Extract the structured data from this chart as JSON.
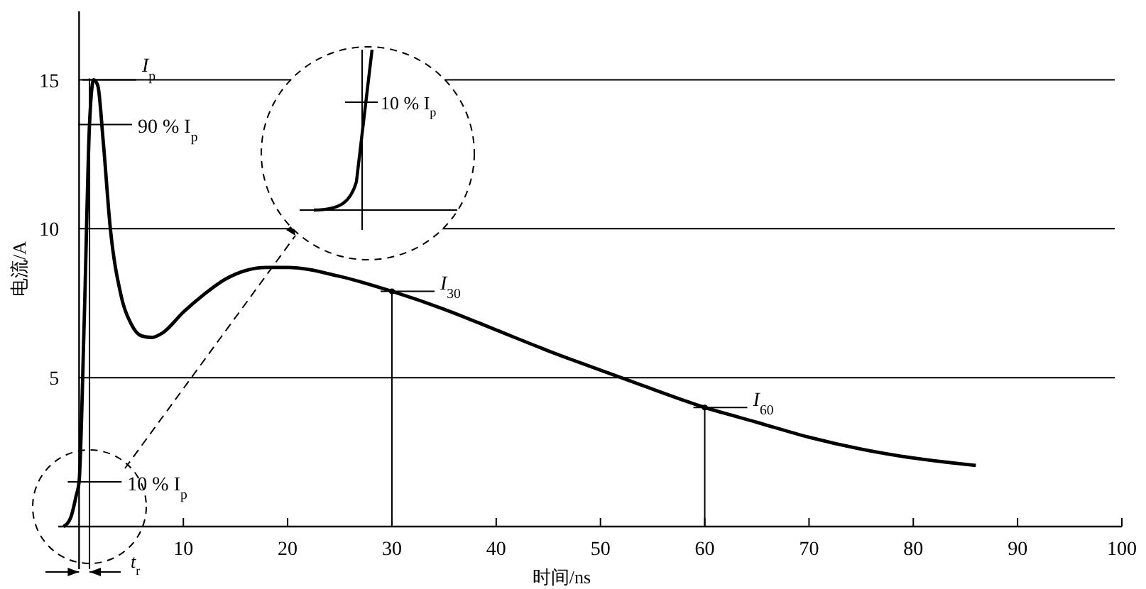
{
  "chart_data": {
    "type": "line",
    "xlabel": "时间/ns",
    "ylabel": "电流/A",
    "xlim": [
      -2,
      100
    ],
    "ylim": [
      0,
      17.3
    ],
    "xticks": [
      10,
      20,
      30,
      40,
      50,
      60,
      70,
      80,
      90,
      100
    ],
    "yticks": [
      5,
      10,
      15
    ],
    "grid": "y",
    "marker": "none",
    "line_style": "solid",
    "series": [
      {
        "color": "#000000",
        "x": [
          -1.5,
          -0.8,
          -0.3,
          0,
          0.5,
          1,
          1.4,
          1.8,
          2.3,
          3,
          4,
          5,
          6,
          7,
          8,
          10,
          12,
          14,
          16,
          18,
          20,
          25,
          30,
          35,
          40,
          45,
          52,
          60,
          65,
          70,
          75,
          80,
          86
        ],
        "values": [
          0,
          0.3,
          1,
          1.5,
          7,
          13.5,
          15,
          14.8,
          13,
          10,
          7.8,
          6.8,
          6.4,
          6.35,
          6.5,
          7.2,
          7.8,
          8.3,
          8.6,
          8.7,
          8.7,
          8.4,
          7.9,
          7.3,
          6.6,
          5.9,
          5.0,
          4.0,
          3.5,
          3.0,
          2.6,
          2.3,
          2.05
        ]
      },
      {
        "type": "lollipop",
        "color": "#000000",
        "marker": "circle",
        "x": [
          30,
          60
        ],
        "values": [
          7.9,
          4.0
        ]
      }
    ],
    "ref_lines": [
      {
        "axis": "x",
        "value": 1
      }
    ],
    "annotations": [
      {
        "text": "I$_{p}$",
        "x": 1.4,
        "y": 15
      },
      {
        "text": "90 % I$_{p}$",
        "x": 1,
        "y": 13.5
      },
      {
        "text": "10 % I$_{p}$",
        "x": 0,
        "y": 1.5
      },
      {
        "text": "I$_{30}$",
        "x": 30,
        "y": 7.9
      },
      {
        "text": "I$_{60}$",
        "x": 60,
        "y": 4.0
      },
      "t$_{r}$",
      "10 % I$_{p}$"
    ]
  }
}
